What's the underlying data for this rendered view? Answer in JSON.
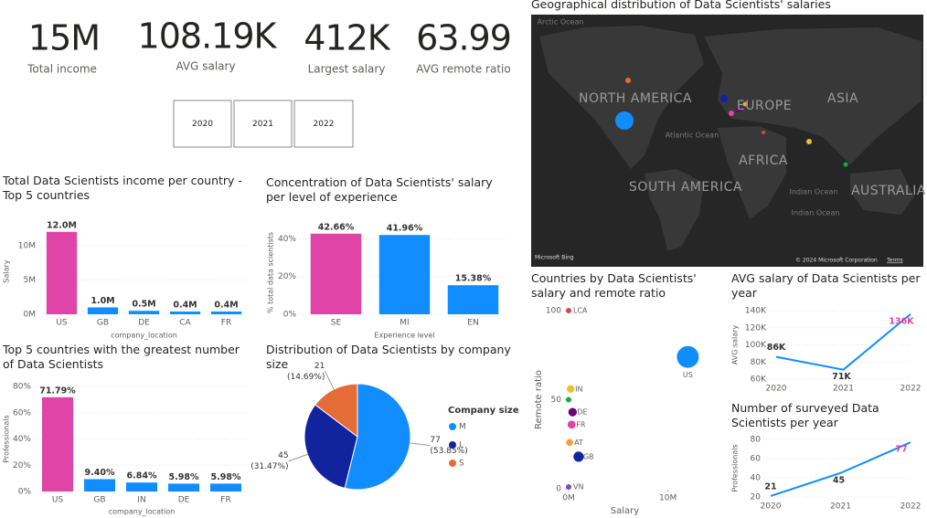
{
  "kpis": [
    {
      "value": "15M",
      "label": "Total income"
    },
    {
      "value": "108.19K",
      "label": "AVG salary"
    },
    {
      "value": "412K",
      "label": "Largest salary"
    },
    {
      "value": "63.99",
      "label": "AVG remote ratio"
    }
  ],
  "year_buttons": [
    "2020",
    "2021",
    "2022"
  ],
  "map": {
    "title": "Geographical distribution of Data Scientists' salaries",
    "labels": [
      "Arctic Ocean",
      "NORTH AMERICA",
      "EUROPE",
      "ASIA",
      "AFRICA",
      "SOUTH AMERICA",
      "AUSTRALIA",
      "Atlantic Ocean",
      "Indian Ocean",
      "Indian Ocean"
    ],
    "provider": "Microsoft Bing",
    "copyright": "© 2024 Microsoft Corporation",
    "terms": "Terms"
  },
  "chart_data": [
    {
      "type": "bar",
      "title": "Total Data Scientists income per country - Top 5 countries",
      "categories": [
        "US",
        "GB",
        "DE",
        "CA",
        "FR"
      ],
      "values": [
        12000000,
        1000000,
        500000,
        400000,
        400000
      ],
      "value_labels": [
        "12.0M",
        "1.0M",
        "0.5M",
        "0.4M",
        "0.4M"
      ],
      "colors": [
        "#e044a7",
        "#118dff",
        "#118dff",
        "#118dff",
        "#118dff"
      ],
      "x_label": "company_location",
      "y_label": "Salary",
      "ylim": [
        0,
        12500000
      ],
      "yticks": [
        {
          "value": 0,
          "label": "0M"
        },
        {
          "value": 5000000,
          "label": "5M"
        },
        {
          "value": 10000000,
          "label": "10M"
        }
      ],
      "grid": true
    },
    {
      "type": "bar",
      "title": "Concentration of Data Scientists' salary per level of experience",
      "categories": [
        "SE",
        "MI",
        "EN"
      ],
      "values": [
        42.66,
        41.96,
        15.38
      ],
      "value_labels": [
        "42.66%",
        "41.96%",
        "15.38%"
      ],
      "colors": [
        "#e044a7",
        "#118dff",
        "#118dff"
      ],
      "x_label": "Experience level",
      "y_label": "% total data scientists",
      "ylim": [
        0,
        44
      ],
      "yticks": [
        {
          "value": 0,
          "label": "0%"
        },
        {
          "value": 20,
          "label": "20%"
        },
        {
          "value": 40,
          "label": "40%"
        }
      ],
      "grid": true
    },
    {
      "type": "bar",
      "title": "Top 5 countries with the greatest number of Data Scientists",
      "categories": [
        "US",
        "GB",
        "IN",
        "DE",
        "FR"
      ],
      "values": [
        71.79,
        9.4,
        6.84,
        5.98,
        5.98
      ],
      "value_labels": [
        "71.79%",
        "9.40%",
        "6.84%",
        "5.98%",
        "5.98%"
      ],
      "colors": [
        "#e044a7",
        "#118dff",
        "#118dff",
        "#118dff",
        "#118dff"
      ],
      "x_label": "company_location",
      "y_label": "Professionals",
      "ylim": [
        0,
        80
      ],
      "yticks": [
        {
          "value": 0,
          "label": "0%"
        },
        {
          "value": 20,
          "label": "20%"
        },
        {
          "value": 40,
          "label": "40%"
        },
        {
          "value": 60,
          "label": "60%"
        },
        {
          "value": 80,
          "label": "80%"
        }
      ],
      "grid": true
    },
    {
      "type": "pie",
      "title": "Distribution of Data Scientists by company size",
      "legend_title": "Company size",
      "categories": [
        "M",
        "L",
        "S"
      ],
      "values": [
        77,
        45,
        21
      ],
      "percent_labels": [
        "(53.85%)",
        "(31.47%)",
        "(14.69%)"
      ],
      "colors": [
        "#118dff",
        "#12239e",
        "#e66c37"
      ]
    },
    {
      "type": "scatter",
      "title": "Countries by Data Scientists' salary and remote ratio",
      "x_label": "Salary",
      "y_label": "Remote ratio",
      "labels": [
        "LCA",
        "IN",
        null,
        "DE",
        "FR",
        "AT",
        "GB",
        "VN",
        "US"
      ],
      "x": [
        0,
        200000,
        0,
        400000,
        300000,
        100000,
        1000000,
        0,
        12000000
      ],
      "y": [
        100,
        56,
        50,
        43,
        36,
        26,
        18,
        1,
        74
      ],
      "colors": [
        "#d64550",
        "#e8c22d",
        "#1aab40",
        "#6b007b",
        "#e044a7",
        "#f2a03d",
        "#12239e",
        "#744ec2",
        "#118dff"
      ],
      "xlim": [
        0,
        15000000
      ],
      "xticks": [
        {
          "value": 0,
          "label": "0M"
        },
        {
          "value": 10000000,
          "label": "10M"
        }
      ],
      "ylim": [
        0,
        100
      ],
      "yticks": [
        0,
        50,
        100
      ]
    },
    {
      "type": "line",
      "title": "AVG salary of Data Scientists per year",
      "categories": [
        "2020",
        "2021",
        "2022"
      ],
      "values": [
        86000,
        71000,
        136000
      ],
      "value_labels": [
        "86K",
        "71K",
        "136K"
      ],
      "value_label_colors": [
        "#333333",
        "#333333",
        "#e044a7"
      ],
      "color": "#118dff",
      "y_label": "AVG salary",
      "ylim": [
        60000,
        140000
      ],
      "yticks": [
        {
          "value": 60000,
          "label": "60K"
        },
        {
          "value": 80000,
          "label": "80K"
        },
        {
          "value": 100000,
          "label": "100K"
        },
        {
          "value": 120000,
          "label": "120K"
        },
        {
          "value": 140000,
          "label": "140K"
        }
      ],
      "grid": true
    },
    {
      "type": "line",
      "title": "Number of surveyed Data Scientists per year",
      "categories": [
        "2020",
        "2021",
        "2022"
      ],
      "values": [
        21,
        45,
        77
      ],
      "value_label_colors": [
        "#333333",
        "#333333",
        "#e044a7"
      ],
      "color": "#118dff",
      "y_label": "Professionals",
      "ylim": [
        20,
        80
      ],
      "yticks": [
        20,
        40,
        60,
        80
      ],
      "grid": true
    }
  ]
}
